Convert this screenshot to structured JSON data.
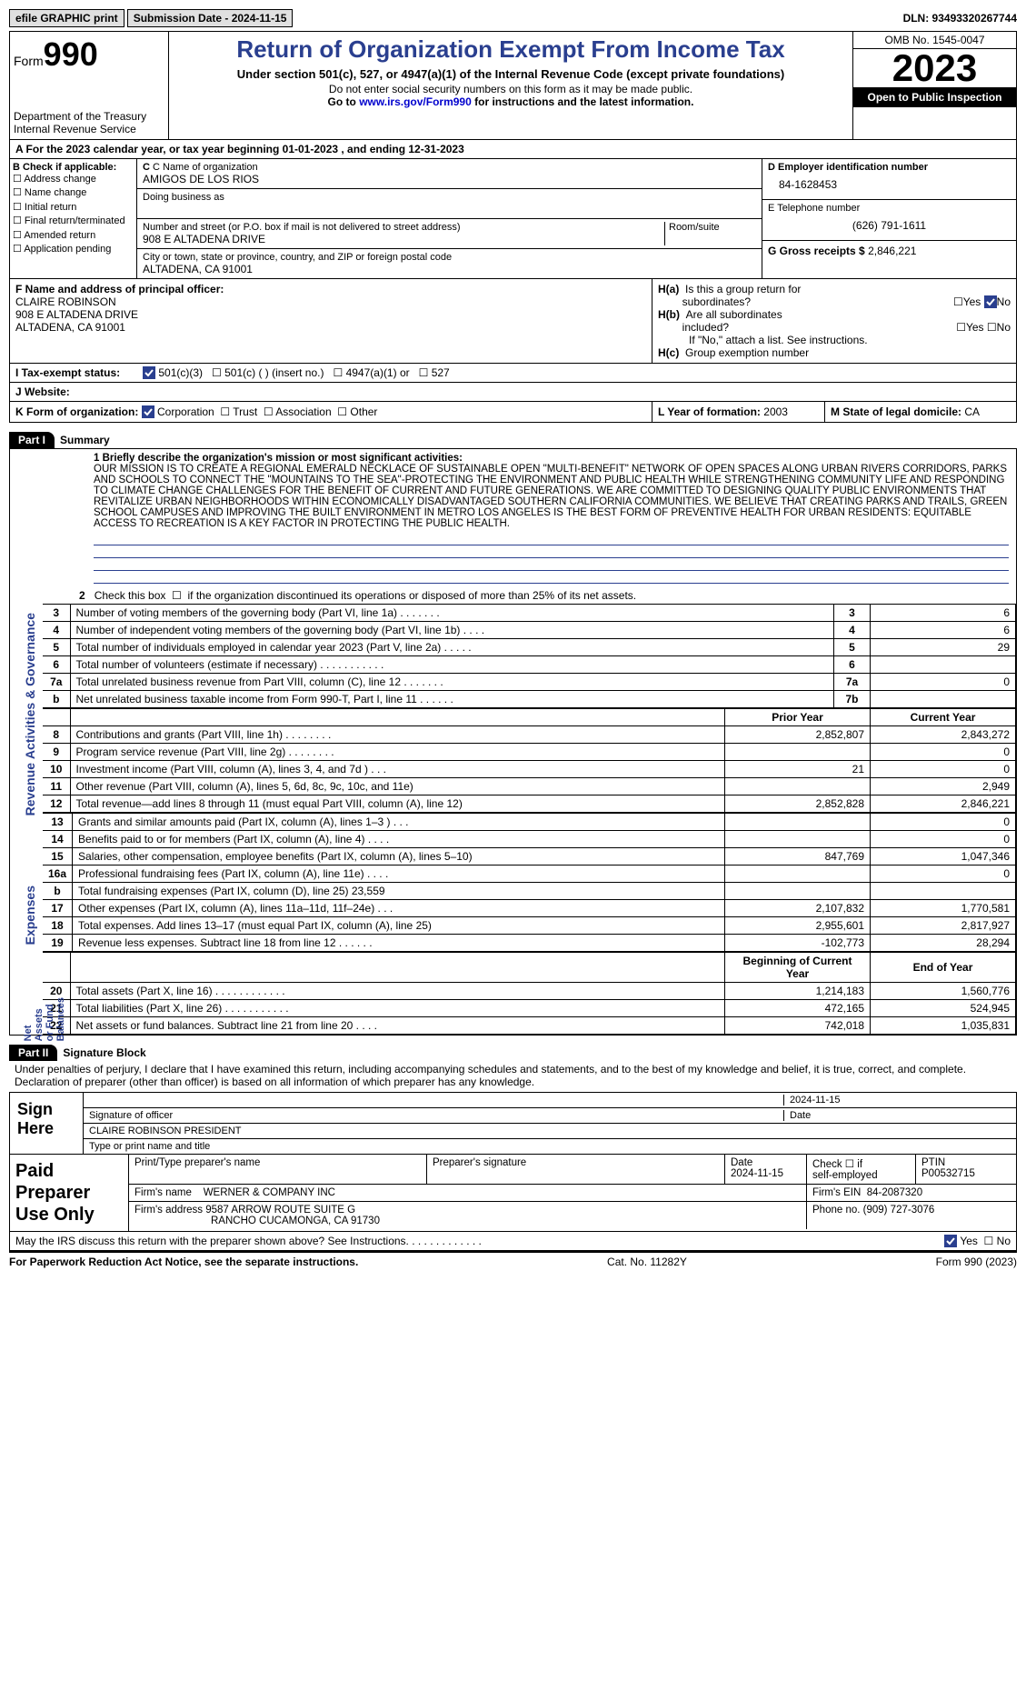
{
  "topbar": {
    "efile": "efile GRAPHIC print",
    "submission": "Submission Date - 2024-11-15",
    "dln": "DLN: 93493320267744"
  },
  "header": {
    "form_label": "Form",
    "form_num": "990",
    "dept": "Department of the Treasury",
    "irs": "Internal Revenue Service",
    "title": "Return of Organization Exempt From Income Tax",
    "sub": "Under section 501(c), 527, or 4947(a)(1) of the Internal Revenue Code (except private foundations)",
    "note1": "Do not enter social security numbers on this form as it may be made public.",
    "note2_pre": "Go to ",
    "note2_link": "www.irs.gov/Form990",
    "note2_post": " for instructions and the latest information.",
    "omb": "OMB No. 1545-0047",
    "year": "2023",
    "inspect": "Open to Public Inspection"
  },
  "line_a": "A For the 2023 calendar year, or tax year beginning 01-01-2023    , and ending 12-31-2023",
  "box_b": {
    "title": "B Check if applicable:",
    "items": [
      "Address change",
      "Name change",
      "Initial return",
      "Final return/terminated",
      "Amended return",
      "Application pending"
    ]
  },
  "box_c": {
    "name_lbl": "C Name of organization",
    "name": "AMIGOS DE LOS RIOS",
    "dba_lbl": "Doing business as",
    "addr_lbl": "Number and street (or P.O. box if mail is not delivered to street address)",
    "room_lbl": "Room/suite",
    "addr": "908 E ALTADENA DRIVE",
    "city_lbl": "City or town, state or province, country, and ZIP or foreign postal code",
    "city": "ALTADENA, CA  91001"
  },
  "box_d": {
    "lbl": "D Employer identification number",
    "val": "84-1628453"
  },
  "box_e": {
    "lbl": "E Telephone number",
    "val": "(626) 791-1611"
  },
  "box_g": {
    "lbl": "G Gross receipts $",
    "val": "2,846,221"
  },
  "box_f": {
    "lbl": "F  Name and address of principal officer:",
    "name": "CLAIRE ROBINSON",
    "addr1": "908 E ALTADENA DRIVE",
    "addr2": "ALTADENA, CA  91001"
  },
  "box_h": {
    "ha": "H(a)  Is this a group return for subordinates?",
    "hb": "H(b)  Are all subordinates included?",
    "hnote": "If \"No,\" attach a list. See instructions.",
    "hc": "H(c)  Group exemption number",
    "yes": "Yes",
    "no": "No"
  },
  "box_i": {
    "lbl": "I   Tax-exempt status:",
    "opts": [
      "501(c)(3)",
      "501(c) (  ) (insert no.)",
      "4947(a)(1) or",
      "527"
    ]
  },
  "box_j": {
    "lbl": "J   Website:"
  },
  "box_k": {
    "lbl": "K Form of organization:",
    "opts": [
      "Corporation",
      "Trust",
      "Association",
      "Other"
    ]
  },
  "box_l": {
    "lbl": "L Year of formation:",
    "val": "2003"
  },
  "box_m": {
    "lbl": "M State of legal domicile:",
    "val": "CA"
  },
  "part1": {
    "hdr": "Part I",
    "title": "Summary",
    "q1_lbl": "1  Briefly describe the organization's mission or most significant activities:",
    "mission": "OUR MISSION IS TO CREATE A REGIONAL EMERALD NECKLACE OF SUSTAINABLE OPEN \"MULTI-BENEFIT\" NETWORK OF OPEN SPACES ALONG URBAN RIVERS CORRIDORS, PARKS AND SCHOOLS TO CONNECT THE \"MOUNTAINS TO THE SEA\"-PROTECTING THE ENVIRONMENT AND PUBLIC HEALTH WHILE STRENGTHENING COMMUNITY LIFE AND RESPONDING TO CLIMATE CHANGE CHALLENGES FOR THE BENEFIT OF CURRENT AND FUTURE GENERATIONS. WE ARE COMMITTED TO DESIGNING QUALITY PUBLIC ENVIRONMENTS THAT REVITALIZE URBAN NEIGHBORHOODS WITHIN ECONOMICALLY DISADVANTAGED SOUTHERN CALIFORNIA COMMUNITIES. WE BELIEVE THAT CREATING PARKS AND TRAILS, GREEN SCHOOL CAMPUSES AND IMPROVING THE BUILT ENVIRONMENT IN METRO LOS ANGELES IS THE BEST FORM OF PREVENTIVE HEALTH FOR URBAN RESIDENTS: EQUITABLE ACCESS TO RECREATION IS A KEY FACTOR IN PROTECTING THE PUBLIC HEALTH.",
    "q2": "2    Check this box       if the organization discontinued its operations or disposed of more than 25% of its net assets.",
    "side_ag": "Activities & Governance",
    "side_rev": "Revenue",
    "side_exp": "Expenses",
    "side_net": "Net Assets or Fund Balances",
    "rows_gov": [
      {
        "n": "3",
        "d": "Number of voting members of the governing body (Part VI, line 1a)   .    .    .    .    .    .    .",
        "b": "3",
        "v": "6"
      },
      {
        "n": "4",
        "d": "Number of independent voting members of the governing body (Part VI, line 1b)    .    .    .    .",
        "b": "4",
        "v": "6"
      },
      {
        "n": "5",
        "d": "Total number of individuals employed in calendar year 2023 (Part V, line 2a)    .    .    .    .    .",
        "b": "5",
        "v": "29"
      },
      {
        "n": "6",
        "d": "Total number of volunteers (estimate if necessary)   .    .    .    .    .    .    .    .    .    .    .",
        "b": "6",
        "v": ""
      },
      {
        "n": "7a",
        "d": "Total unrelated business revenue from Part VIII, column (C), line 12   .    .    .    .    .    .    .",
        "b": "7a",
        "v": "0"
      },
      {
        "n": "b",
        "d": "Net unrelated business taxable income from Form 990-T, Part I, line 11    .    .    .    .    .    .",
        "b": "7b",
        "v": ""
      }
    ],
    "hdr_prior": "Prior Year",
    "hdr_curr": "Current Year",
    "rows_rev": [
      {
        "n": "8",
        "d": "Contributions and grants (Part VIII, line 1h)   .    .    .    .    .    .    .    .",
        "p": "2,852,807",
        "c": "2,843,272"
      },
      {
        "n": "9",
        "d": "Program service revenue (Part VIII, line 2g)   .    .    .    .    .    .    .    .",
        "p": "",
        "c": "0"
      },
      {
        "n": "10",
        "d": "Investment income (Part VIII, column (A), lines 3, 4, and 7d )   .    .    .",
        "p": "21",
        "c": "0"
      },
      {
        "n": "11",
        "d": "Other revenue (Part VIII, column (A), lines 5, 6d, 8c, 9c, 10c, and 11e)",
        "p": "",
        "c": "2,949"
      },
      {
        "n": "12",
        "d": "Total revenue—add lines 8 through 11 (must equal Part VIII, column (A), line 12)",
        "p": "2,852,828",
        "c": "2,846,221"
      }
    ],
    "rows_exp": [
      {
        "n": "13",
        "d": "Grants and similar amounts paid (Part IX, column (A), lines 1–3 )   .    .    .",
        "p": "",
        "c": "0"
      },
      {
        "n": "14",
        "d": "Benefits paid to or for members (Part IX, column (A), line 4)   .    .    .    .",
        "p": "",
        "c": "0"
      },
      {
        "n": "15",
        "d": "Salaries, other compensation, employee benefits (Part IX, column (A), lines 5–10)",
        "p": "847,769",
        "c": "1,047,346"
      },
      {
        "n": "16a",
        "d": "Professional fundraising fees (Part IX, column (A), line 11e)   .    .    .    .",
        "p": "",
        "c": "0"
      },
      {
        "n": "b",
        "d": "Total fundraising expenses (Part IX, column (D), line 25) 23,559",
        "p": "",
        "c": ""
      },
      {
        "n": "17",
        "d": "Other expenses (Part IX, column (A), lines 11a–11d, 11f–24e)   .    .    .",
        "p": "2,107,832",
        "c": "1,770,581"
      },
      {
        "n": "18",
        "d": "Total expenses. Add lines 13–17 (must equal Part IX, column (A), line 25)",
        "p": "2,955,601",
        "c": "2,817,927"
      },
      {
        "n": "19",
        "d": "Revenue less expenses. Subtract line 18 from line 12   .    .    .    .    .    .",
        "p": "-102,773",
        "c": "28,294"
      }
    ],
    "hdr_beg": "Beginning of Current Year",
    "hdr_end": "End of Year",
    "rows_net": [
      {
        "n": "20",
        "d": "Total assets (Part X, line 16)   .    .    .    .    .    .    .    .    .    .    .    .",
        "p": "1,214,183",
        "c": "1,560,776"
      },
      {
        "n": "21",
        "d": "Total liabilities (Part X, line 26)   .    .    .    .    .    .    .    .    .    .    .",
        "p": "472,165",
        "c": "524,945"
      },
      {
        "n": "22",
        "d": "Net assets or fund balances. Subtract line 21 from line 20   .    .    .    .",
        "p": "742,018",
        "c": "1,035,831"
      }
    ]
  },
  "part2": {
    "hdr": "Part II",
    "title": "Signature Block",
    "perjury": "Under penalties of perjury, I declare that I have examined this return, including accompanying schedules and statements, and to the best of my knowledge and belief, it is true, correct, and complete. Declaration of preparer (other than officer) is based on all information of which preparer has any knowledge.",
    "sign_here": "Sign Here",
    "sig_lbl": "Signature of officer",
    "sig_date": "2024-11-15",
    "date_lbl": "Date",
    "officer": "CLAIRE ROBINSON PRESIDENT",
    "type_lbl": "Type or print name and title",
    "paid": "Paid Preparer Use Only",
    "prep_name_lbl": "Print/Type preparer's name",
    "prep_sig_lbl": "Preparer's signature",
    "prep_date": "2024-11-15",
    "check_self": "Check         if self-employed",
    "ptin_lbl": "PTIN",
    "ptin": "P00532715",
    "firm_lbl": "Firm's name",
    "firm": "WERNER & COMPANY INC",
    "ein_lbl": "Firm's EIN",
    "ein": "84-2087320",
    "firm_addr_lbl": "Firm's address",
    "firm_addr": "9587 ARROW ROUTE SUITE G",
    "firm_city": "RANCHO CUCAMONGA, CA  91730",
    "phone_lbl": "Phone no.",
    "phone": "(909) 727-3076",
    "discuss": "May the IRS discuss this return with the preparer shown above? See Instructions.   .    .    .    .    .    .    .    .    .    .    .    .",
    "yes": "Yes",
    "no": "No"
  },
  "footer": {
    "left": "For Paperwork Reduction Act Notice, see the separate instructions.",
    "mid": "Cat. No. 11282Y",
    "right": "Form 990 (2023)"
  }
}
